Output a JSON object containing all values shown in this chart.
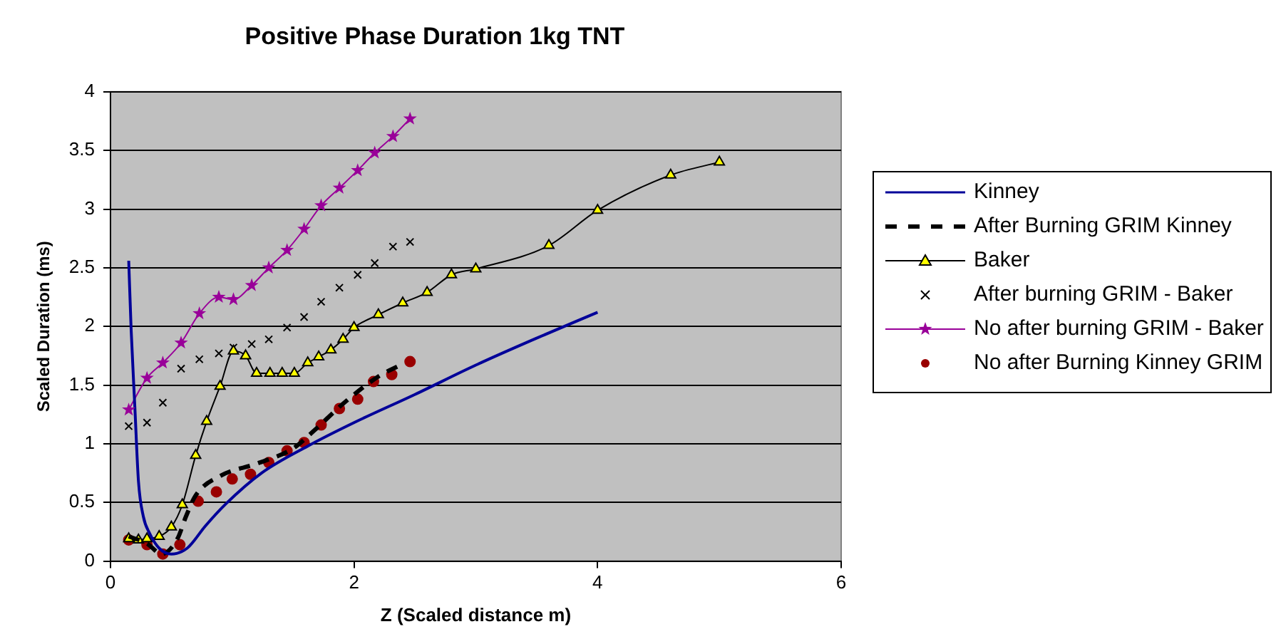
{
  "chart_data": {
    "type": "line",
    "title": "Positive Phase Duration 1kg TNT",
    "xlabel": "Z (Scaled distance m)",
    "ylabel": "Scaled Duration (ms)",
    "xlim": [
      0,
      6
    ],
    "xticks": [
      0,
      2,
      4,
      6
    ],
    "ylim": [
      0,
      4
    ],
    "yticks": [
      0,
      0.5,
      1,
      1.5,
      2,
      2.5,
      3,
      3.5,
      4
    ],
    "grid": "y",
    "legend": "right",
    "series": [
      {
        "name": "Kinney",
        "type": "line",
        "color": "#000099",
        "marker": "none",
        "line_style": "solid",
        "x": [
          0.15,
          0.17,
          0.2,
          0.23,
          0.27,
          0.32,
          0.4,
          0.5,
          0.63,
          0.78,
          0.95,
          1.24,
          1.62,
          2.0,
          2.5,
          3.0,
          3.5,
          4.0
        ],
        "values": [
          2.56,
          1.97,
          1.32,
          0.68,
          0.38,
          0.24,
          0.11,
          0.06,
          0.11,
          0.3,
          0.49,
          0.75,
          0.98,
          1.18,
          1.42,
          1.67,
          1.9,
          2.12
        ]
      },
      {
        "name": "After Burning GRIM Kinney",
        "type": "line",
        "color": "#000000",
        "marker": "none",
        "line_style": "dashed",
        "x": [
          0.15,
          0.3,
          0.42,
          0.55,
          0.62,
          0.7,
          0.91,
          1.2,
          1.5,
          1.67,
          1.92,
          2.21,
          2.38
        ],
        "values": [
          0.21,
          0.15,
          0.06,
          0.19,
          0.38,
          0.56,
          0.73,
          0.83,
          0.96,
          1.11,
          1.35,
          1.58,
          1.67
        ]
      },
      {
        "name": "Baker",
        "type": "line",
        "color": "#000000",
        "colors": [
          "#ffff00",
          "#ffff00",
          "#ffff00",
          "#ffff00",
          "#ffff00",
          "#ffff00",
          "#ffff00",
          "#ffff00",
          "#ffff00",
          "#ffff00",
          "#ffff00",
          "#ffff00",
          "#ffff00",
          "#ffff00",
          "#ffff00",
          "#ffff00",
          "#ffff00",
          "#ffff00",
          "#ffff00",
          "#ffff00",
          "#ffff00",
          "#ffff00",
          "#ffff00",
          "#ffff00",
          "#ffff00",
          "#ffff00",
          "#ffff00",
          "#ffff00",
          "#ffff00"
        ],
        "marker": "triangle",
        "line_style": "solid",
        "x": [
          0.15,
          0.23,
          0.3,
          0.4,
          0.5,
          0.59,
          0.7,
          0.79,
          0.9,
          1.01,
          1.11,
          1.2,
          1.31,
          1.41,
          1.51,
          1.62,
          1.71,
          1.81,
          1.91,
          2.0,
          2.2,
          2.4,
          2.6,
          2.8,
          3.0,
          3.6,
          4.0,
          4.6,
          5.0
        ],
        "values": [
          0.19,
          0.18,
          0.19,
          0.21,
          0.29,
          0.48,
          0.9,
          1.19,
          1.49,
          1.79,
          1.75,
          1.6,
          1.6,
          1.6,
          1.6,
          1.69,
          1.74,
          1.8,
          1.89,
          1.99,
          2.1,
          2.2,
          2.29,
          2.44,
          2.49,
          2.69,
          2.99,
          3.29,
          3.4
        ]
      },
      {
        "name": "After burning GRIM - Baker",
        "type": "scatter",
        "color": "#000000",
        "marker": "cross",
        "x": [
          0.15,
          0.3,
          0.43,
          0.58,
          0.73,
          0.89,
          1.01,
          1.16,
          1.3,
          1.45,
          1.59,
          1.73,
          1.88,
          2.03,
          2.17,
          2.32,
          2.46
        ],
        "values": [
          1.15,
          1.18,
          1.35,
          1.64,
          1.72,
          1.77,
          1.82,
          1.85,
          1.89,
          1.99,
          2.08,
          2.21,
          2.33,
          2.44,
          2.54,
          2.68,
          2.72
        ]
      },
      {
        "name": "No after burning GRIM - Baker",
        "type": "line",
        "color": "#990099",
        "marker": "star",
        "line_style": "solid",
        "x": [
          0.15,
          0.3,
          0.43,
          0.58,
          0.73,
          0.89,
          1.01,
          1.16,
          1.3,
          1.45,
          1.59,
          1.73,
          1.88,
          2.03,
          2.17,
          2.32,
          2.46
        ],
        "values": [
          1.29,
          1.56,
          1.69,
          1.86,
          2.11,
          2.25,
          2.23,
          2.35,
          2.5,
          2.65,
          2.83,
          3.03,
          3.18,
          3.33,
          3.48,
          3.62,
          3.77
        ]
      },
      {
        "name": "No after Burning Kinney GRIM",
        "type": "scatter",
        "color": "#990000",
        "marker": "circle",
        "x": [
          0.15,
          0.3,
          0.43,
          0.57,
          0.72,
          0.87,
          1.0,
          1.15,
          1.3,
          1.45,
          1.59,
          1.73,
          1.88,
          2.03,
          2.16,
          2.31,
          2.46
        ],
        "values": [
          0.18,
          0.14,
          0.06,
          0.14,
          0.51,
          0.59,
          0.7,
          0.74,
          0.84,
          0.94,
          1.01,
          1.16,
          1.3,
          1.38,
          1.53,
          1.59,
          1.7
        ]
      }
    ]
  }
}
